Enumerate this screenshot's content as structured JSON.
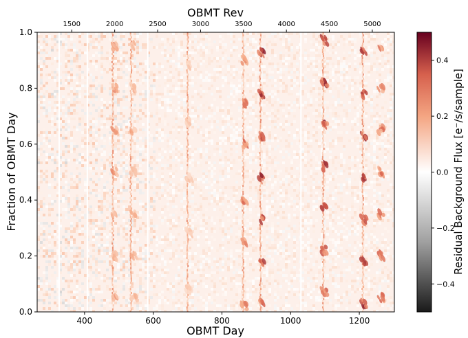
{
  "chart_data": {
    "type": "heatmap",
    "title": "",
    "xlabel": "OBMT Day",
    "x2label": "OBMT Rev",
    "ylabel": "Fraction of OBMT Day",
    "colorbar_label": "Residual Background Flux [e⁻/s/sample]",
    "xlim": [
      262,
      1302
    ],
    "ylim": [
      0,
      1.0
    ],
    "clim": [
      -0.5,
      0.5
    ],
    "colormap": "RdGy_r",
    "x_ticks": [
      400,
      600,
      800,
      1000,
      1200
    ],
    "x_tick_labels": [
      "400",
      "600",
      "800",
      "1000",
      "1200"
    ],
    "x2_ticks": [
      1500,
      2000,
      2500,
      3000,
      3500,
      4000,
      4500,
      5000
    ],
    "x2_tick_labels": [
      "1500",
      "2000",
      "2500",
      "3000",
      "3500",
      "4000",
      "4500",
      "5000"
    ],
    "x2_rev_per_day": 4.0,
    "x2_offset_rev": 49,
    "y_ticks": [
      0.0,
      0.2,
      0.4,
      0.6,
      0.8,
      1.0
    ],
    "y_tick_labels": [
      "0.0",
      "0.2",
      "0.4",
      "0.6",
      "0.8",
      "1.0"
    ],
    "colorbar_ticks": [
      -0.4,
      -0.2,
      0.0,
      0.2,
      0.4
    ],
    "colorbar_tick_labels": [
      "−0.4",
      "−0.2",
      "0.0",
      "0.2",
      "0.4"
    ],
    "colors": {
      "low": "#1a1a1a",
      "mid": "#ffffff",
      "high": "#67001f",
      "accent": "#c0392b"
    },
    "data_gaps_day": [
      326,
      408,
      584,
      1030
    ],
    "bright_columns_day": [
      482,
      535,
      700,
      862,
      912,
      1095,
      1210
    ],
    "strong_features": [
      {
        "day": 485,
        "fracs": [
          0.05,
          0.2,
          0.35,
          0.5,
          0.65,
          0.8,
          0.95
        ],
        "amp": 0.3
      },
      {
        "day": 540,
        "fracs": [
          0.05,
          0.2,
          0.35,
          0.5,
          0.65,
          0.8,
          0.95
        ],
        "amp": 0.25
      },
      {
        "day": 700,
        "fracs": [
          0.08,
          0.28,
          0.48,
          0.68,
          0.88
        ],
        "amp": 0.2
      },
      {
        "day": 862,
        "fracs": [
          0.02,
          0.25,
          0.4,
          0.6,
          0.75,
          0.9
        ],
        "amp": 0.35
      },
      {
        "day": 912,
        "fracs": [
          0.03,
          0.18,
          0.33,
          0.48,
          0.63,
          0.78,
          0.93
        ],
        "amp": 0.45
      },
      {
        "day": 1095,
        "fracs": [
          0.07,
          0.22,
          0.37,
          0.52,
          0.67,
          0.82,
          0.97
        ],
        "amp": 0.45
      },
      {
        "day": 1210,
        "fracs": [
          0.03,
          0.18,
          0.33,
          0.48,
          0.63,
          0.78,
          0.93
        ],
        "amp": 0.45
      },
      {
        "day": 1260,
        "fracs": [
          0.05,
          0.2,
          0.35,
          0.5,
          0.65,
          0.8,
          0.95
        ],
        "amp": 0.35
      }
    ]
  }
}
